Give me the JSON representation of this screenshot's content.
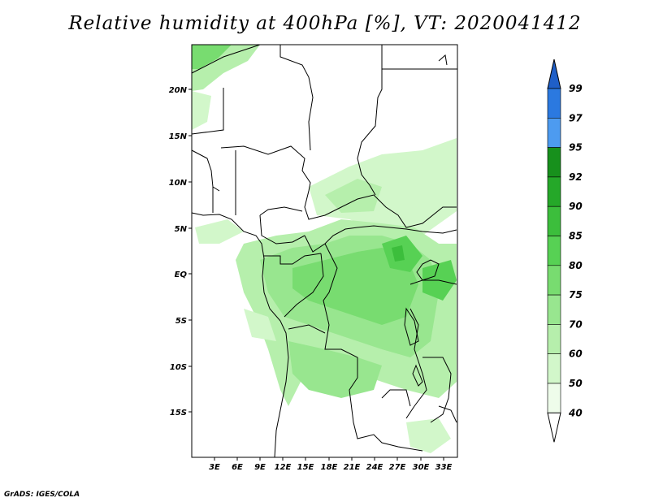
{
  "title": "Relative humidity at 400hPa [%], VT: 2020041412",
  "credit": "GrADS: IGES/COLA",
  "lat_labels": [
    "20N",
    "15N",
    "10N",
    "5N",
    "EQ",
    "5S",
    "10S",
    "15S"
  ],
  "lon_labels": [
    "3E",
    "6E",
    "9E",
    "12E",
    "15E",
    "18E",
    "21E",
    "24E",
    "27E",
    "30E",
    "33E"
  ],
  "colorbar": {
    "labels": [
      "99",
      "97",
      "95",
      "92",
      "90",
      "85",
      "80",
      "75",
      "70",
      "60",
      "50",
      "40"
    ],
    "colors": [
      "#1f5fc8",
      "#2b79e0",
      "#4d9bf0",
      "#17901c",
      "#25a829",
      "#3cbe3c",
      "#57d154",
      "#78dc70",
      "#98e68f",
      "#b6efac",
      "#d2f7ca",
      "#eefcea"
    ]
  },
  "map_region": {
    "lon_range": [
      0,
      36
    ],
    "lat_range": [
      -20,
      24
    ]
  }
}
